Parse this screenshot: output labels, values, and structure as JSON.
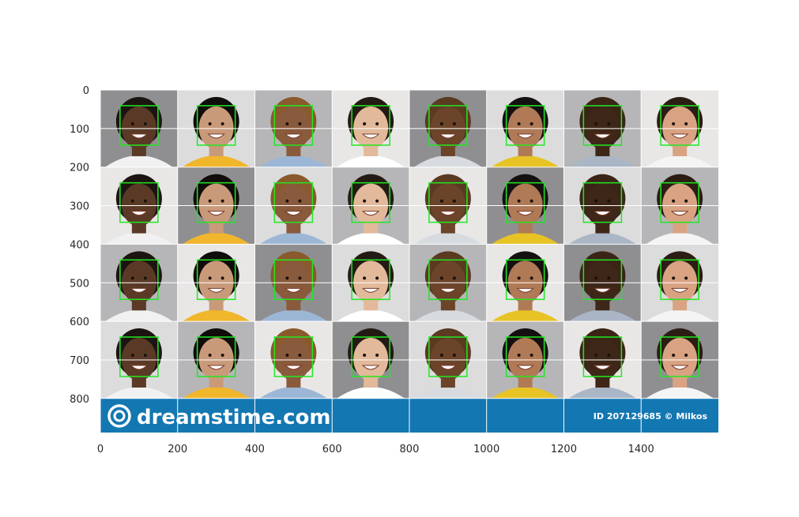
{
  "x_axis": {
    "ticks": [
      "0",
      "200",
      "400",
      "600",
      "800",
      "1000",
      "1200",
      "1400"
    ]
  },
  "y_axis": {
    "ticks": [
      "0",
      "100",
      "200",
      "300",
      "400",
      "500",
      "600",
      "700",
      "800"
    ]
  },
  "image": {
    "grid_rows": 4,
    "grid_cols": 8,
    "face_box_color": "#22e822",
    "background_tones": [
      "#8f8f92",
      "#e9e7e6",
      "#b6b6b9",
      "#dcdcdc"
    ]
  },
  "watermark": {
    "logo_text": "dreamstime.com",
    "credit": "ID 207129685 © Milkos",
    "band_color": "#1377b2"
  }
}
